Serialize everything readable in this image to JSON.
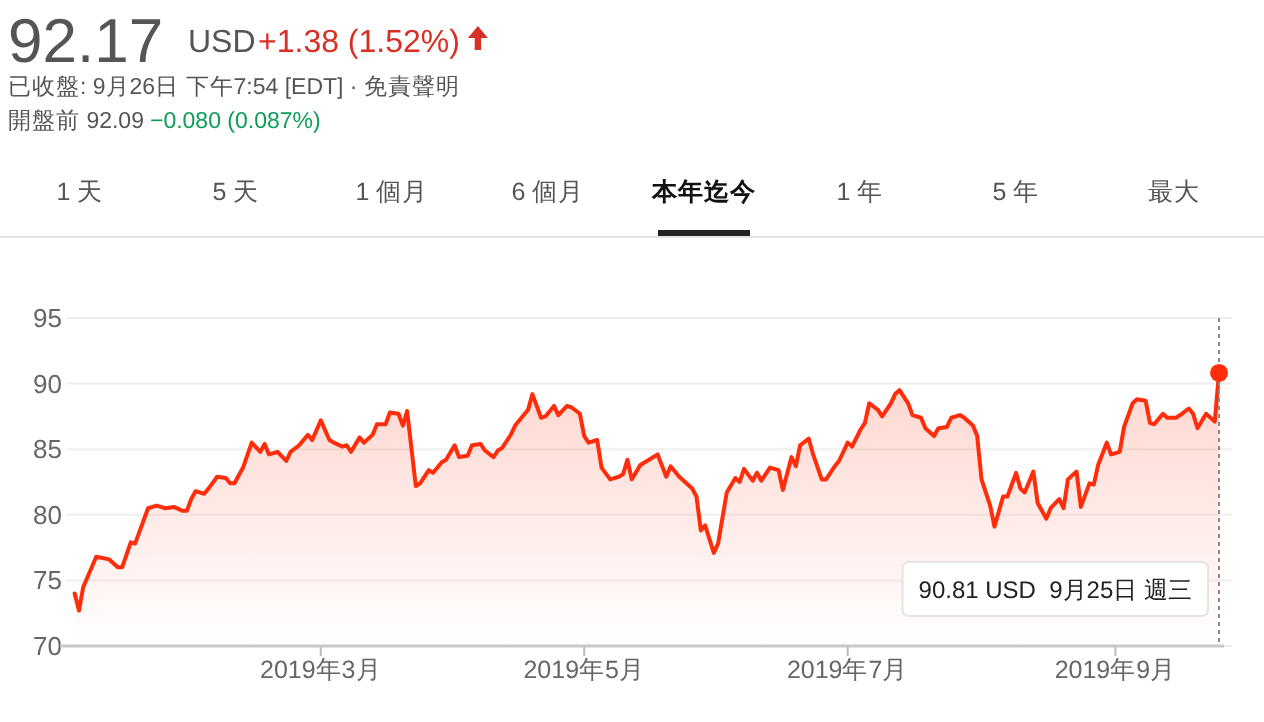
{
  "chart_data": {
    "type": "area",
    "title": "92.17",
    "annotations": [
      "USD",
      "+1.38 (1.52%)",
      "已收盤: 9月26日 下午7:54 [EDT] · 免責聲明",
      "開盤前 92.09",
      "−0.080 (0.087%)",
      "1 天",
      "5 天",
      "1 個月",
      "6 個月",
      "本年迄今",
      "1 年",
      "5 年",
      "最大",
      "90.81 USD  9月25日 週三"
    ],
    "x": [
      "2019-01-03",
      "2019-01-04",
      "2019-01-05",
      "2019-01-08",
      "2019-01-11",
      "2019-01-13",
      "2019-01-14",
      "2019-01-16",
      "2019-01-17",
      "2019-01-20",
      "2019-01-22",
      "2019-01-24",
      "2019-01-26",
      "2019-01-28",
      "2019-01-29",
      "2019-01-30",
      "2019-01-31",
      "2019-02-02",
      "2019-02-03",
      "2019-02-05",
      "2019-02-07",
      "2019-02-08",
      "2019-02-09",
      "2019-02-11",
      "2019-02-13",
      "2019-02-15",
      "2019-02-16",
      "2019-02-17",
      "2019-02-19",
      "2019-02-21",
      "2019-02-22",
      "2019-02-24",
      "2019-02-26",
      "2019-02-27",
      "2019-03-01",
      "2019-03-03",
      "2019-03-04",
      "2019-03-06",
      "2019-03-07",
      "2019-03-08",
      "2019-03-10",
      "2019-03-11",
      "2019-03-13",
      "2019-03-14",
      "2019-03-16",
      "2019-03-17",
      "2019-03-19",
      "2019-03-20",
      "2019-03-21",
      "2019-03-23",
      "2019-03-24",
      "2019-03-26",
      "2019-03-27",
      "2019-03-29",
      "2019-03-30",
      "2019-04-01",
      "2019-04-02",
      "2019-04-04",
      "2019-04-05",
      "2019-04-07",
      "2019-04-08",
      "2019-04-10",
      "2019-04-11",
      "2019-04-12",
      "2019-04-14",
      "2019-04-15",
      "2019-04-18",
      "2019-04-19",
      "2019-04-21",
      "2019-04-22",
      "2019-04-24",
      "2019-04-25",
      "2019-04-27",
      "2019-04-28",
      "2019-04-30",
      "2019-05-01",
      "2019-05-02",
      "2019-05-04",
      "2019-05-05",
      "2019-05-07",
      "2019-05-09",
      "2019-05-10",
      "2019-05-11",
      "2019-05-12",
      "2019-05-14",
      "2019-05-16",
      "2019-05-18",
      "2019-05-20",
      "2019-05-21",
      "2019-05-23",
      "2019-05-26",
      "2019-05-27",
      "2019-05-28",
      "2019-05-29",
      "2019-05-31",
      "2019-06-01",
      "2019-06-03",
      "2019-06-05",
      "2019-06-06",
      "2019-06-07",
      "2019-06-09",
      "2019-06-10",
      "2019-06-11",
      "2019-06-13",
      "2019-06-15",
      "2019-06-16",
      "2019-06-18",
      "2019-06-19",
      "2019-06-20",
      "2019-06-22",
      "2019-06-23",
      "2019-06-25",
      "2019-06-26",
      "2019-06-28",
      "2019-06-29",
      "2019-07-01",
      "2019-07-02",
      "2019-07-04",
      "2019-07-05",
      "2019-07-06",
      "2019-07-08",
      "2019-07-09",
      "2019-07-11",
      "2019-07-12",
      "2019-07-13",
      "2019-07-15",
      "2019-07-16",
      "2019-07-18",
      "2019-07-19",
      "2019-07-21",
      "2019-07-22",
      "2019-07-24",
      "2019-07-25",
      "2019-07-27",
      "2019-07-28",
      "2019-07-30",
      "2019-07-31",
      "2019-08-01",
      "2019-08-03",
      "2019-08-04",
      "2019-08-06",
      "2019-08-07",
      "2019-08-09",
      "2019-08-10",
      "2019-08-11",
      "2019-08-13",
      "2019-08-14",
      "2019-08-16",
      "2019-08-17",
      "2019-08-19",
      "2019-08-20",
      "2019-08-21",
      "2019-08-23",
      "2019-08-24",
      "2019-08-26",
      "2019-08-27",
      "2019-08-28",
      "2019-08-30",
      "2019-08-31",
      "2019-09-02",
      "2019-09-03",
      "2019-09-05",
      "2019-09-06",
      "2019-09-08",
      "2019-09-09",
      "2019-09-10",
      "2019-09-12",
      "2019-09-13",
      "2019-09-15",
      "2019-09-16",
      "2019-09-18",
      "2019-09-19",
      "2019-09-20",
      "2019-09-22",
      "2019-09-24",
      "2019-09-25"
    ],
    "series": [
      {
        "color": "#ff2d0a",
        "values": [
          74.0,
          72.7,
          74.5,
          76.8,
          76.6,
          76.0,
          76.0,
          77.9,
          77.8,
          80.5,
          80.7,
          80.5,
          80.6,
          80.3,
          80.3,
          81.2,
          81.8,
          81.6,
          82.0,
          82.9,
          82.8,
          82.4,
          82.4,
          83.6,
          85.5,
          84.8,
          85.4,
          84.6,
          84.8,
          84.1,
          84.8,
          85.3,
          86.1,
          85.7,
          87.2,
          85.7,
          85.5,
          85.2,
          85.3,
          84.8,
          85.9,
          85.5,
          86.1,
          86.9,
          86.9,
          87.8,
          87.7,
          86.8,
          87.9,
          82.2,
          82.4,
          83.4,
          83.2,
          84.0,
          84.2,
          85.3,
          84.4,
          84.5,
          85.3,
          85.4,
          84.9,
          84.4,
          84.9,
          85.1,
          86.1,
          86.8,
          88.0,
          89.2,
          87.4,
          87.5,
          88.3,
          87.6,
          88.3,
          88.2,
          87.7,
          86.0,
          85.5,
          85.7,
          83.6,
          82.7,
          82.9,
          83.1,
          84.2,
          82.7,
          83.8,
          84.2,
          84.6,
          82.9,
          83.7,
          82.9,
          82.0,
          81.4,
          78.8,
          79.2,
          77.1,
          77.8,
          81.7,
          82.8,
          82.5,
          83.5,
          82.6,
          83.2,
          82.6,
          83.6,
          83.4,
          81.9,
          84.4,
          83.7,
          85.3,
          85.8,
          84.6,
          82.7,
          82.7,
          83.7,
          84.1,
          85.5,
          85.2,
          86.5,
          87.0,
          88.5,
          88.0,
          87.5,
          88.5,
          89.2,
          89.5,
          88.5,
          87.6,
          87.4,
          86.6,
          86.0,
          86.6,
          86.7,
          87.4,
          87.6,
          87.4,
          86.8,
          86.0,
          82.7,
          80.7,
          79.1,
          81.4,
          81.4,
          83.2,
          82.0,
          81.7,
          83.3,
          80.9,
          79.7,
          80.5,
          81.2,
          80.5,
          82.7,
          83.3,
          80.6,
          82.4,
          82.3,
          83.8,
          85.5,
          84.6,
          84.8,
          86.7,
          88.5,
          88.8,
          88.7,
          87.0,
          86.9,
          87.7,
          87.4,
          87.4,
          87.6,
          88.1,
          87.7,
          86.6,
          87.7,
          87.1,
          90.81
        ]
      }
    ],
    "xlim": [
      "2019-01-01",
      "2019-09-28"
    ],
    "xticks": [
      {
        "value": "2019-03-01",
        "label": "2019年3月"
      },
      {
        "value": "2019-05-01",
        "label": "2019年5月"
      },
      {
        "value": "2019-07-01",
        "label": "2019年7月"
      },
      {
        "value": "2019-09-01",
        "label": "2019年9月"
      }
    ],
    "ylim": [
      70,
      95
    ],
    "yticks": [
      70,
      75,
      80,
      85,
      90,
      95
    ],
    "grid": "y",
    "ref_lines": [
      {
        "axis": "x",
        "value": "2019-09-25",
        "color": "#888888",
        "line_style": "dotted"
      }
    ]
  }
}
